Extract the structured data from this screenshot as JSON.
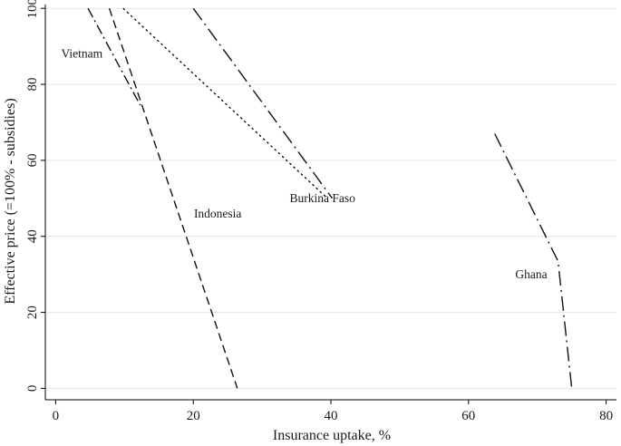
{
  "chart_data": {
    "type": "line",
    "title": "",
    "xlabel": "Insurance uptake, %",
    "ylabel": "Effective price (=100% - subsidies)",
    "xlim": [
      -1.5,
      81.5
    ],
    "ylim": [
      -3,
      101
    ],
    "xticks": [
      0,
      20,
      40,
      60,
      80
    ],
    "yticks": [
      0,
      20,
      40,
      60,
      80,
      100
    ],
    "xtick_labels": [
      "0",
      "20",
      "40",
      "60",
      "80"
    ],
    "ytick_labels": [
      "0",
      "20",
      "40",
      "60",
      "80",
      "100"
    ],
    "grid": "horizontal",
    "colors": {
      "line": "#111111",
      "grid": "#e6e6e6",
      "axis": "#000000"
    },
    "series": [
      {
        "name": "Vietnam",
        "style": "dash-dot",
        "points": [
          [
            4.7,
            100
          ],
          [
            12.3,
            74.5
          ]
        ]
      },
      {
        "name": "Vietnam",
        "style": "dotted",
        "points": [
          [
            9.8,
            100
          ],
          [
            39.5,
            50
          ]
        ]
      },
      {
        "name": "Indonesia",
        "style": "dashed",
        "points": [
          [
            7.8,
            100
          ],
          [
            26.4,
            0
          ]
        ]
      },
      {
        "name": "Burkina Faso",
        "style": "long-dash-dot",
        "points": [
          [
            20,
            100
          ],
          [
            40.2,
            50
          ]
        ]
      },
      {
        "name": "Ghana",
        "style": "long-dash-dot",
        "points": [
          [
            63.8,
            67
          ],
          [
            73,
            33.5
          ],
          [
            75,
            0
          ]
        ]
      }
    ],
    "annotations": [
      {
        "text": "Vietnam",
        "x": 0.8,
        "y": 87
      },
      {
        "text": "Indonesia",
        "x": 20.1,
        "y": 45
      },
      {
        "text": "Burkina Faso",
        "x": 34,
        "y": 49
      },
      {
        "text": "Ghana",
        "x": 66.8,
        "y": 29
      }
    ]
  }
}
